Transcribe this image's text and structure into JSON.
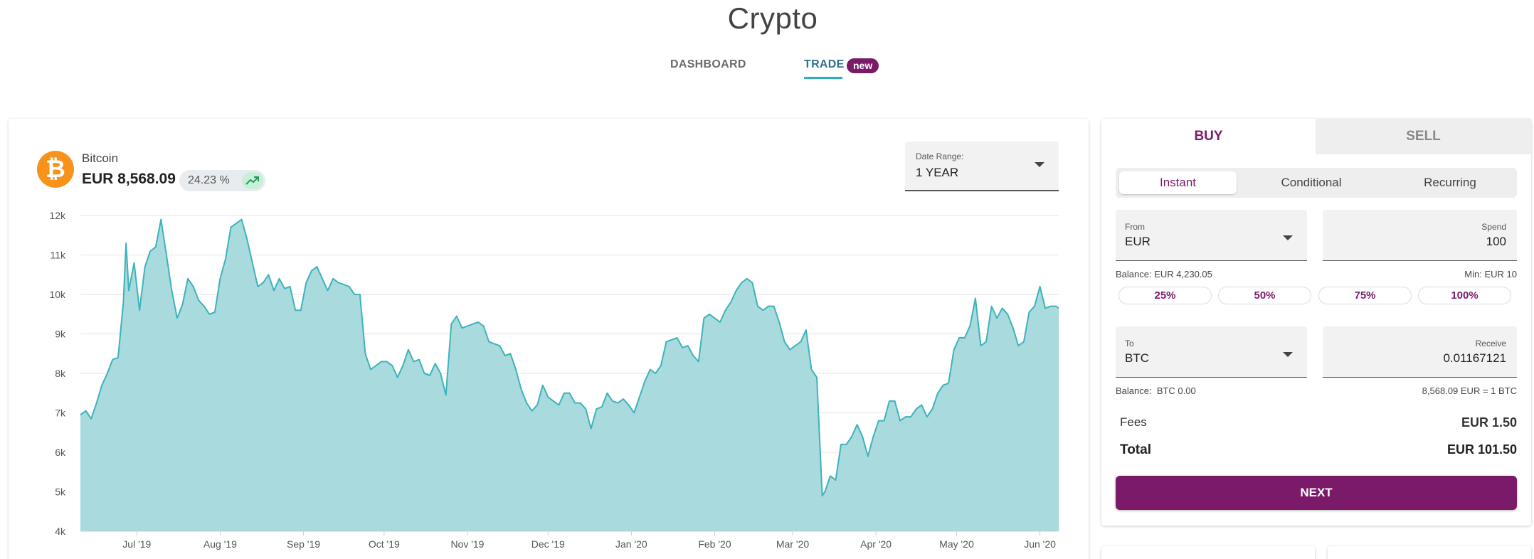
{
  "header": {
    "title": "Crypto",
    "tabs": [
      {
        "label": "DASHBOARD"
      },
      {
        "label": "TRADE",
        "badge": "new"
      }
    ]
  },
  "coin": {
    "name": "Bitcoin",
    "price": "EUR 8,568.09",
    "change": "24.23 %",
    "icon": "bitcoin-icon",
    "trend_icon": "trending-up-icon"
  },
  "date_range": {
    "label": "Date Range:",
    "value": "1 YEAR"
  },
  "chart_data": {
    "type": "area",
    "title": "",
    "xlabel": "",
    "ylabel": "",
    "ylim": [
      4000,
      12000
    ],
    "yticks": [
      4000,
      5000,
      6000,
      7000,
      8000,
      9000,
      10000,
      11000,
      12000
    ],
    "ytick_labels": [
      "4k",
      "5k",
      "6k",
      "7k",
      "8k",
      "9k",
      "10k",
      "11k",
      "12k"
    ],
    "xlim": [
      "2019-06-10",
      "2020-06-08"
    ],
    "xticks": [
      "2019-07-01",
      "2019-08-01",
      "2019-09-01",
      "2019-10-01",
      "2019-11-01",
      "2019-12-01",
      "2020-01-01",
      "2020-02-01",
      "2020-03-01",
      "2020-04-01",
      "2020-05-01",
      "2020-06-01"
    ],
    "xtick_labels": [
      "Jul '19",
      "Aug '19",
      "Sep '19",
      "Oct '19",
      "Nov '19",
      "Dec '19",
      "Jan '20",
      "Feb '20",
      "Mar '20",
      "Apr '20",
      "May '20",
      "Jun '20"
    ],
    "grid": true,
    "color": "#3db3bb",
    "fill": "#a8dade",
    "series": [
      {
        "points": [
          [
            "2019-06-10",
            6950
          ],
          [
            "2019-06-12",
            7050
          ],
          [
            "2019-06-14",
            6850
          ],
          [
            "2019-06-16",
            7250
          ],
          [
            "2019-06-18",
            7700
          ],
          [
            "2019-06-20",
            8000
          ],
          [
            "2019-06-22",
            8350
          ],
          [
            "2019-06-24",
            8400
          ],
          [
            "2019-06-26",
            9800
          ],
          [
            "2019-06-27",
            11300
          ],
          [
            "2019-06-28",
            10100
          ],
          [
            "2019-06-30",
            10800
          ],
          [
            "2019-07-02",
            9600
          ],
          [
            "2019-07-04",
            10700
          ],
          [
            "2019-07-06",
            11100
          ],
          [
            "2019-07-08",
            11200
          ],
          [
            "2019-07-10",
            11900
          ],
          [
            "2019-07-12",
            11000
          ],
          [
            "2019-07-14",
            10100
          ],
          [
            "2019-07-16",
            9400
          ],
          [
            "2019-07-18",
            9750
          ],
          [
            "2019-07-20",
            10400
          ],
          [
            "2019-07-22",
            10200
          ],
          [
            "2019-07-24",
            9850
          ],
          [
            "2019-07-26",
            9700
          ],
          [
            "2019-07-28",
            9500
          ],
          [
            "2019-07-30",
            9550
          ],
          [
            "2019-08-01",
            10400
          ],
          [
            "2019-08-03",
            10900
          ],
          [
            "2019-08-05",
            11700
          ],
          [
            "2019-08-07",
            11800
          ],
          [
            "2019-08-09",
            11900
          ],
          [
            "2019-08-11",
            11400
          ],
          [
            "2019-08-13",
            10800
          ],
          [
            "2019-08-15",
            10200
          ],
          [
            "2019-08-17",
            10300
          ],
          [
            "2019-08-19",
            10500
          ],
          [
            "2019-08-21",
            10100
          ],
          [
            "2019-08-23",
            10400
          ],
          [
            "2019-08-25",
            10150
          ],
          [
            "2019-08-27",
            10200
          ],
          [
            "2019-08-29",
            9600
          ],
          [
            "2019-08-31",
            9600
          ],
          [
            "2019-09-02",
            10300
          ],
          [
            "2019-09-04",
            10600
          ],
          [
            "2019-09-06",
            10700
          ],
          [
            "2019-09-08",
            10400
          ],
          [
            "2019-09-10",
            10100
          ],
          [
            "2019-09-12",
            10400
          ],
          [
            "2019-09-14",
            10300
          ],
          [
            "2019-09-16",
            10250
          ],
          [
            "2019-09-18",
            10200
          ],
          [
            "2019-09-20",
            10000
          ],
          [
            "2019-09-22",
            10000
          ],
          [
            "2019-09-24",
            8500
          ],
          [
            "2019-09-26",
            8100
          ],
          [
            "2019-09-28",
            8200
          ],
          [
            "2019-09-30",
            8300
          ],
          [
            "2019-10-02",
            8300
          ],
          [
            "2019-10-04",
            8200
          ],
          [
            "2019-10-06",
            7900
          ],
          [
            "2019-10-08",
            8200
          ],
          [
            "2019-10-10",
            8600
          ],
          [
            "2019-10-12",
            8300
          ],
          [
            "2019-10-14",
            8350
          ],
          [
            "2019-10-16",
            8000
          ],
          [
            "2019-10-18",
            7950
          ],
          [
            "2019-10-20",
            8250
          ],
          [
            "2019-10-22",
            8000
          ],
          [
            "2019-10-24",
            7450
          ],
          [
            "2019-10-26",
            9250
          ],
          [
            "2019-10-28",
            9450
          ],
          [
            "2019-10-30",
            9150
          ],
          [
            "2019-11-01",
            9200
          ],
          [
            "2019-11-03",
            9250
          ],
          [
            "2019-11-05",
            9300
          ],
          [
            "2019-11-07",
            9200
          ],
          [
            "2019-11-09",
            8800
          ],
          [
            "2019-11-11",
            8750
          ],
          [
            "2019-11-13",
            8700
          ],
          [
            "2019-11-15",
            8450
          ],
          [
            "2019-11-17",
            8500
          ],
          [
            "2019-11-19",
            8100
          ],
          [
            "2019-11-21",
            7600
          ],
          [
            "2019-11-23",
            7250
          ],
          [
            "2019-11-25",
            7050
          ],
          [
            "2019-11-27",
            7200
          ],
          [
            "2019-11-29",
            7700
          ],
          [
            "2019-12-01",
            7400
          ],
          [
            "2019-12-03",
            7300
          ],
          [
            "2019-12-05",
            7200
          ],
          [
            "2019-12-07",
            7500
          ],
          [
            "2019-12-09",
            7500
          ],
          [
            "2019-12-11",
            7250
          ],
          [
            "2019-12-13",
            7250
          ],
          [
            "2019-12-15",
            7100
          ],
          [
            "2019-12-17",
            6600
          ],
          [
            "2019-12-19",
            7100
          ],
          [
            "2019-12-21",
            7150
          ],
          [
            "2019-12-23",
            7500
          ],
          [
            "2019-12-25",
            7300
          ],
          [
            "2019-12-27",
            7250
          ],
          [
            "2019-12-29",
            7350
          ],
          [
            "2019-12-31",
            7200
          ],
          [
            "2020-01-02",
            7000
          ],
          [
            "2020-01-04",
            7400
          ],
          [
            "2020-01-06",
            7800
          ],
          [
            "2020-01-08",
            8100
          ],
          [
            "2020-01-10",
            8000
          ],
          [
            "2020-01-12",
            8200
          ],
          [
            "2020-01-14",
            8800
          ],
          [
            "2020-01-16",
            8850
          ],
          [
            "2020-01-18",
            8900
          ],
          [
            "2020-01-20",
            8650
          ],
          [
            "2020-01-22",
            8700
          ],
          [
            "2020-01-24",
            8450
          ],
          [
            "2020-01-26",
            8300
          ],
          [
            "2020-01-28",
            9400
          ],
          [
            "2020-01-30",
            9500
          ],
          [
            "2020-02-01",
            9400
          ],
          [
            "2020-02-03",
            9300
          ],
          [
            "2020-02-05",
            9600
          ],
          [
            "2020-02-07",
            9800
          ],
          [
            "2020-02-09",
            10100
          ],
          [
            "2020-02-11",
            10300
          ],
          [
            "2020-02-13",
            10400
          ],
          [
            "2020-02-15",
            10300
          ],
          [
            "2020-02-17",
            9700
          ],
          [
            "2020-02-19",
            9600
          ],
          [
            "2020-02-21",
            9700
          ],
          [
            "2020-02-23",
            9700
          ],
          [
            "2020-02-25",
            9300
          ],
          [
            "2020-02-27",
            8800
          ],
          [
            "2020-02-29",
            8600
          ],
          [
            "2020-03-02",
            8700
          ],
          [
            "2020-03-04",
            8800
          ],
          [
            "2020-03-06",
            9100
          ],
          [
            "2020-03-08",
            8100
          ],
          [
            "2020-03-10",
            7900
          ],
          [
            "2020-03-12",
            4900
          ],
          [
            "2020-03-13",
            5000
          ],
          [
            "2020-03-15",
            5400
          ],
          [
            "2020-03-17",
            5300
          ],
          [
            "2020-03-19",
            6200
          ],
          [
            "2020-03-21",
            6200
          ],
          [
            "2020-03-23",
            6400
          ],
          [
            "2020-03-25",
            6700
          ],
          [
            "2020-03-27",
            6400
          ],
          [
            "2020-03-29",
            5900
          ],
          [
            "2020-03-31",
            6400
          ],
          [
            "2020-04-02",
            6800
          ],
          [
            "2020-04-04",
            6800
          ],
          [
            "2020-04-06",
            7300
          ],
          [
            "2020-04-08",
            7300
          ],
          [
            "2020-04-10",
            6800
          ],
          [
            "2020-04-12",
            6900
          ],
          [
            "2020-04-14",
            6900
          ],
          [
            "2020-04-16",
            7100
          ],
          [
            "2020-04-18",
            7200
          ],
          [
            "2020-04-20",
            6900
          ],
          [
            "2020-04-22",
            7100
          ],
          [
            "2020-04-24",
            7500
          ],
          [
            "2020-04-26",
            7700
          ],
          [
            "2020-04-28",
            7750
          ],
          [
            "2020-04-30",
            8600
          ],
          [
            "2020-05-02",
            8900
          ],
          [
            "2020-05-04",
            8900
          ],
          [
            "2020-05-06",
            9200
          ],
          [
            "2020-05-08",
            9900
          ],
          [
            "2020-05-10",
            8700
          ],
          [
            "2020-05-12",
            8800
          ],
          [
            "2020-05-14",
            9700
          ],
          [
            "2020-05-16",
            9400
          ],
          [
            "2020-05-18",
            9650
          ],
          [
            "2020-05-20",
            9500
          ],
          [
            "2020-05-22",
            9150
          ],
          [
            "2020-05-24",
            8700
          ],
          [
            "2020-05-26",
            8800
          ],
          [
            "2020-05-28",
            9550
          ],
          [
            "2020-05-30",
            9700
          ],
          [
            "2020-06-01",
            10200
          ],
          [
            "2020-06-03",
            9650
          ],
          [
            "2020-06-05",
            9700
          ],
          [
            "2020-06-07",
            9700
          ],
          [
            "2020-06-08",
            9650
          ]
        ]
      }
    ]
  },
  "trade": {
    "tabs": {
      "buy": "BUY",
      "sell": "SELL"
    },
    "modes": {
      "instant": "Instant",
      "conditional": "Conditional",
      "recurring": "Recurring"
    },
    "from": {
      "label": "From",
      "value": "EUR"
    },
    "spend": {
      "label": "Spend",
      "value": "100"
    },
    "balance_from": "Balance: EUR 4,230.05",
    "min": "Min: EUR 10",
    "percents": [
      "25%",
      "50%",
      "75%",
      "100%"
    ],
    "to": {
      "label": "To",
      "value": "BTC"
    },
    "receive": {
      "label": "Receive",
      "value": "0.01167121"
    },
    "balance_to": "Balance:  BTC 0.00",
    "rate": "8,568.09 EUR = 1 BTC",
    "fees_label": "Fees",
    "fees_value": "EUR 1.50",
    "total_label": "Total",
    "total_value": "EUR 101.50",
    "next_label": "NEXT"
  },
  "colors": {
    "brand": "#7b1a68",
    "accent": "#2ab0b8",
    "bitcoin": "#f7931a"
  }
}
